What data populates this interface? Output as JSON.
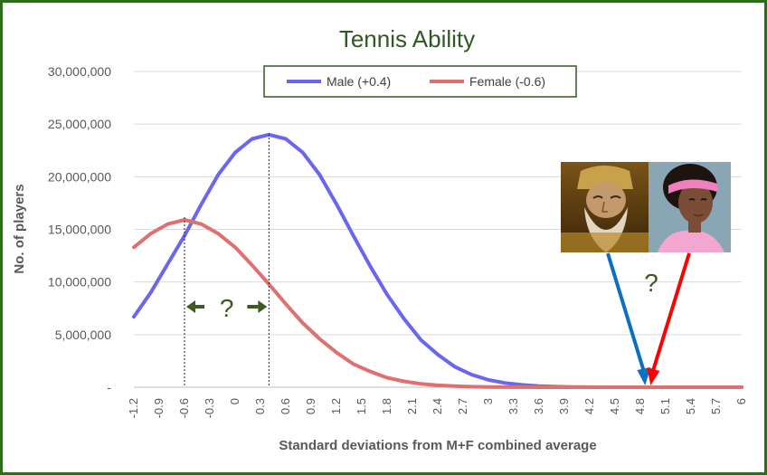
{
  "chart_data": {
    "type": "line",
    "title": "Tennis Ability",
    "xlabel": "Standard deviations from M+F combined average",
    "ylabel": "No. of players",
    "x_tick_labels": [
      "-1.2",
      "-0.9",
      "-0.6",
      "-0.3",
      "0",
      "0.3",
      "0.6",
      "0.9",
      "1.2",
      "1.5",
      "1.8",
      "2.1",
      "2.4",
      "2.7",
      "3",
      "3.3",
      "3.6",
      "3.9",
      "4.2",
      "4.5",
      "4.8",
      "5.1",
      "5.4",
      "5.7",
      "6"
    ],
    "y_tick_labels": [
      "-",
      "5,000,000",
      "10,000,000",
      "15,000,000",
      "20,000,000",
      "25,000,000",
      "30,000,000"
    ],
    "ylim": [
      0,
      30000000
    ],
    "xlim": [
      -1.2,
      6
    ],
    "grid": true,
    "legend_position": "top",
    "series": [
      {
        "name": "Male (+0.4)",
        "color": "#6b66f0",
        "mean": 0.4,
        "points": [
          [
            -1.2,
            6700000
          ],
          [
            -1.0,
            9000000
          ],
          [
            -0.8,
            11700000
          ],
          [
            -0.6,
            14400000
          ],
          [
            -0.4,
            17400000
          ],
          [
            -0.2,
            20200000
          ],
          [
            0.0,
            22300000
          ],
          [
            0.2,
            23600000
          ],
          [
            0.4,
            24000000
          ],
          [
            0.6,
            23600000
          ],
          [
            0.8,
            22300000
          ],
          [
            1.0,
            20200000
          ],
          [
            1.2,
            17400000
          ],
          [
            1.4,
            14400000
          ],
          [
            1.6,
            11500000
          ],
          [
            1.8,
            8800000
          ],
          [
            2.0,
            6500000
          ],
          [
            2.2,
            4500000
          ],
          [
            2.4,
            3100000
          ],
          [
            2.6,
            1950000
          ],
          [
            2.8,
            1200000
          ],
          [
            3.0,
            700000
          ],
          [
            3.2,
            400000
          ],
          [
            3.4,
            220000
          ],
          [
            3.6,
            110000
          ],
          [
            3.8,
            50000
          ],
          [
            4.0,
            20000
          ],
          [
            4.2,
            8000
          ],
          [
            4.5,
            2000
          ],
          [
            5.0,
            100
          ],
          [
            6.0,
            0
          ]
        ]
      },
      {
        "name": "Female (-0.6)",
        "color": "#e07070",
        "mean": -0.6,
        "points": [
          [
            -1.2,
            13300000
          ],
          [
            -1.0,
            14600000
          ],
          [
            -0.8,
            15500000
          ],
          [
            -0.6,
            15900000
          ],
          [
            -0.4,
            15500000
          ],
          [
            -0.2,
            14600000
          ],
          [
            0.0,
            13300000
          ],
          [
            0.2,
            11600000
          ],
          [
            0.4,
            9800000
          ],
          [
            0.6,
            7900000
          ],
          [
            0.8,
            6100000
          ],
          [
            1.0,
            4600000
          ],
          [
            1.2,
            3300000
          ],
          [
            1.4,
            2200000
          ],
          [
            1.6,
            1500000
          ],
          [
            1.8,
            900000
          ],
          [
            2.0,
            560000
          ],
          [
            2.2,
            330000
          ],
          [
            2.4,
            180000
          ],
          [
            2.6,
            100000
          ],
          [
            2.8,
            50000
          ],
          [
            3.0,
            20000
          ],
          [
            3.3,
            5000
          ],
          [
            3.6,
            1000
          ],
          [
            4.0,
            0
          ],
          [
            6.0,
            0
          ]
        ]
      }
    ],
    "annotations": [
      {
        "type": "gap-marker",
        "text": "?",
        "from": -0.6,
        "to": 0.4
      },
      {
        "type": "arrows-from-photos",
        "text": "?",
        "target_x": 4.9
      }
    ]
  },
  "photos": [
    {
      "name": "bearded-man-portrait"
    },
    {
      "name": "female-tennis-player-portrait"
    }
  ],
  "colors": {
    "frame": "#2f6b1f",
    "title": "#2f5a1f",
    "grid": "#d9d9d9",
    "axis_text": "#595959",
    "annotation": "#3d5a1f",
    "arrow_blue": "#0b6fc4",
    "arrow_red": "#ff0000"
  }
}
